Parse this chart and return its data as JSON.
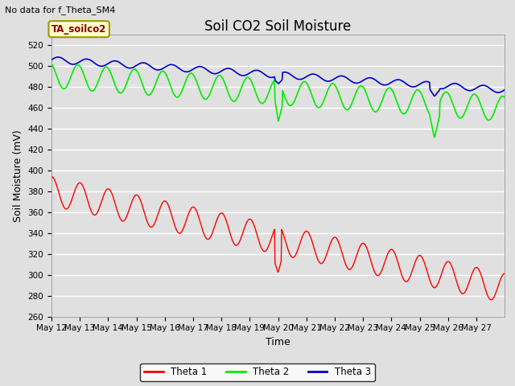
{
  "title": "Soil CO2 Soil Moisture",
  "no_data_text": "No data for f_Theta_SM4",
  "annotation_box": "TA_soilco2",
  "xlabel": "Time",
  "ylabel": "Soil Moisture (mV)",
  "ylim": [
    260,
    530
  ],
  "yticks": [
    260,
    280,
    300,
    320,
    340,
    360,
    380,
    400,
    420,
    440,
    460,
    480,
    500,
    520
  ],
  "background_color": "#e0e0e0",
  "plot_bg_color": "#e0e0e0",
  "grid_color": "white",
  "x_labels": [
    "May 12",
    "May 13",
    "May 14",
    "May 15",
    "May 16",
    "May 17",
    "May 18",
    "May 19",
    "May 20",
    "May 21",
    "May 22",
    "May 23",
    "May 24",
    "May 25",
    "May 26",
    "May 27"
  ],
  "theta1_color": "#ff0000",
  "theta2_color": "#00ee00",
  "theta3_color": "#0000cc",
  "legend_entries": [
    "Theta 1",
    "Theta 2",
    "Theta 3"
  ],
  "title_fontsize": 12,
  "axis_label_fontsize": 9,
  "tick_fontsize": 7.5
}
